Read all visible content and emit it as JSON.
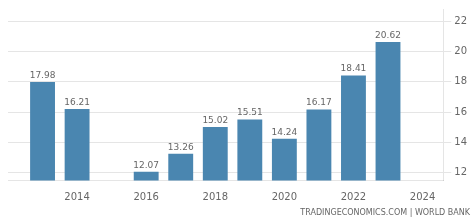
{
  "chart_data": {
    "type": "bar",
    "x": [
      2013,
      2014,
      2016,
      2017,
      2018,
      2019,
      2020,
      2021,
      2022,
      2023
    ],
    "values": [
      17.98,
      16.21,
      12.07,
      13.26,
      15.02,
      15.51,
      14.24,
      16.17,
      18.41,
      20.62
    ],
    "color": "#4a86b0",
    "xlim": [
      2012.0,
      2024.6
    ],
    "xticks": [
      2014,
      2016,
      2018,
      2020,
      2022,
      2024
    ],
    "ylim": [
      11.5,
      22.8
    ],
    "yticks": [
      12,
      14,
      16,
      18,
      20,
      22
    ],
    "grid": true,
    "data_labels": true,
    "annotations": [
      "TRADINGECONOMICS.COM | WORLD BANK"
    ]
  }
}
